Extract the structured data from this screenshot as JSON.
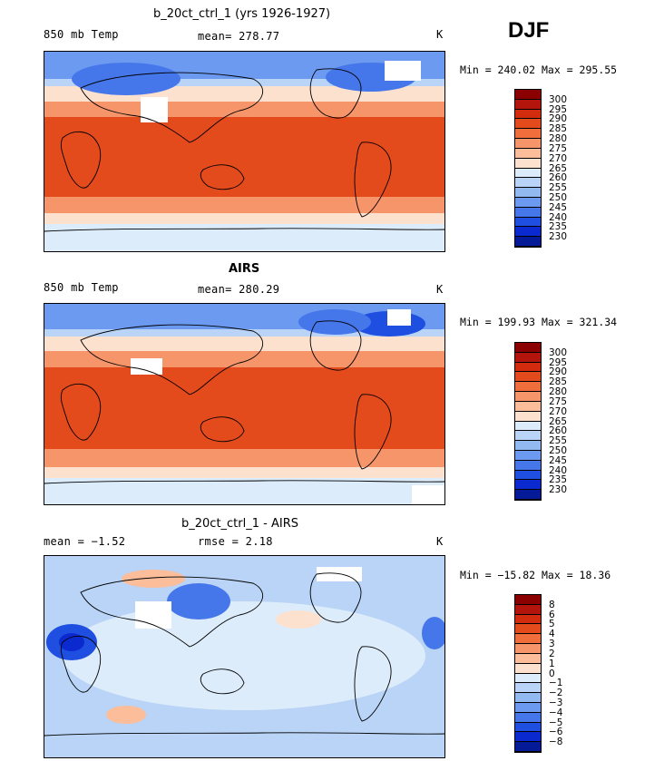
{
  "season": "DJF",
  "panels": [
    {
      "title": "b_20ct_ctrl_1 (yrs 1926-1927)",
      "left_label": "850 mb Temp",
      "center_label": "mean= 278.77",
      "units": "K",
      "range_text": "Min = 240.02 Max = 295.55",
      "colorbar": {
        "labels": [
          "300",
          "295",
          "290",
          "285",
          "280",
          "275",
          "270",
          "265",
          "260",
          "255",
          "250",
          "245",
          "240",
          "235",
          "230"
        ],
        "colors": [
          "#8b0000",
          "#b3150d",
          "#d22b0e",
          "#e34a1c",
          "#ef6e3b",
          "#f7956a",
          "#fbbd9a",
          "#fde1cf",
          "#ddecfb",
          "#b9d4f6",
          "#92b9f0",
          "#6b9af0",
          "#4577eb",
          "#1f4fe0",
          "#0a2ad0",
          "#041a96"
        ]
      }
    },
    {
      "title": "AIRS",
      "left_label": "850 mb Temp",
      "center_label": "mean= 280.29",
      "units": "K",
      "range_text": "Min = 199.93 Max = 321.34",
      "colorbar": {
        "labels": [
          "300",
          "295",
          "290",
          "285",
          "280",
          "275",
          "270",
          "265",
          "260",
          "255",
          "250",
          "245",
          "240",
          "235",
          "230"
        ],
        "colors": [
          "#8b0000",
          "#b3150d",
          "#d22b0e",
          "#e34a1c",
          "#ef6e3b",
          "#f7956a",
          "#fbbd9a",
          "#fde1cf",
          "#ddecfb",
          "#b9d4f6",
          "#92b9f0",
          "#6b9af0",
          "#4577eb",
          "#1f4fe0",
          "#0a2ad0",
          "#041a96"
        ]
      }
    },
    {
      "title": "b_20ct_ctrl_1 - AIRS",
      "left_label": "mean =   −1.52",
      "center_label": "rmse =    2.18",
      "units": "K",
      "range_text": "Min = −15.82 Max =  18.36",
      "colorbar": {
        "labels": [
          "8",
          "6",
          "5",
          "4",
          "3",
          "2",
          "1",
          "0",
          "−1",
          "−2",
          "−3",
          "−4",
          "−5",
          "−6",
          "−8"
        ],
        "colors": [
          "#8b0000",
          "#b3150d",
          "#d22b0e",
          "#e34a1c",
          "#ef6e3b",
          "#f7956a",
          "#fbbd9a",
          "#fde1cf",
          "#ddecfb",
          "#b9d4f6",
          "#92b9f0",
          "#6b9af0",
          "#4577eb",
          "#1f4fe0",
          "#0a2ad0",
          "#041a96"
        ]
      }
    }
  ]
}
